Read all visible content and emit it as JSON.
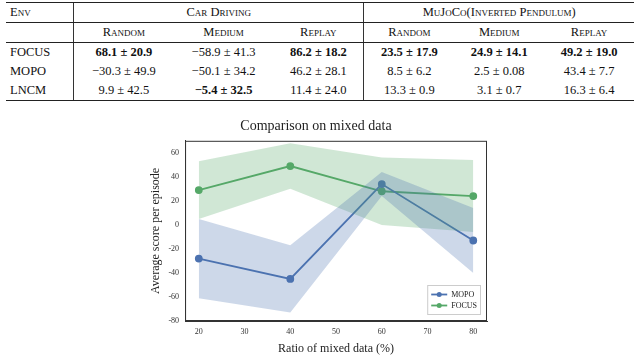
{
  "table": {
    "corner": "Env",
    "groups": [
      {
        "text": "Car Driving",
        "columns": [
          "Random",
          "Medium",
          "Replay"
        ]
      },
      {
        "text": "MuJoCo(Inverted Pendulum)",
        "columns": [
          "Random",
          "Medium",
          "Replay"
        ]
      }
    ],
    "rows": [
      {
        "name": "FOCUS",
        "cells": [
          {
            "text": "68.1 ± 20.9",
            "bold": true
          },
          {
            "text": "−58.9 ± 41.3",
            "bold": false
          },
          {
            "text": "86.2 ± 18.2",
            "bold": true
          },
          {
            "text": "23.5 ± 17.9",
            "bold": true
          },
          {
            "text": "24.9 ± 14.1",
            "bold": true
          },
          {
            "text": "49.2 ± 19.0",
            "bold": true
          }
        ]
      },
      {
        "name": "MOPO",
        "cells": [
          {
            "text": "−30.3 ± 49.9",
            "bold": false
          },
          {
            "text": "−50.1 ± 34.2",
            "bold": false
          },
          {
            "text": "46.2 ± 28.1",
            "bold": false
          },
          {
            "text": "8.5 ± 6.2",
            "bold": false
          },
          {
            "text": "2.5 ± 0.08",
            "bold": false
          },
          {
            "text": "43.4 ± 7.7",
            "bold": false
          }
        ]
      },
      {
        "name": "LNCM",
        "cells": [
          {
            "text": "9.9 ± 42.5",
            "bold": false
          },
          {
            "text": "−5.4 ± 32.5",
            "bold": true
          },
          {
            "text": "11.4 ± 24.0",
            "bold": false
          },
          {
            "text": "13.3 ± 0.9",
            "bold": false
          },
          {
            "text": "3.1 ± 0.7",
            "bold": false
          },
          {
            "text": "16.3 ± 6.4",
            "bold": false
          }
        ]
      }
    ]
  },
  "chart_data": {
    "type": "line",
    "title": "Comparison on mixed data",
    "x_label": "Ratio of mixed data (%)",
    "y_label": "Average score per episode",
    "x": [
      20,
      40,
      60,
      80
    ],
    "xlim": [
      17,
      83
    ],
    "xticks": [
      20,
      30,
      40,
      50,
      60,
      70,
      80
    ],
    "ylim": [
      -80,
      70
    ],
    "yticks": [
      -80,
      -60,
      -40,
      -20,
      0,
      20,
      40,
      60
    ],
    "grid": false,
    "legend": "lower right",
    "series": [
      {
        "name": "MOPO",
        "color": "#4c72b0",
        "marker": "circle",
        "values": [
          -28,
          -45,
          34,
          -13
        ],
        "error": [
          33,
          28,
          10,
          27
        ]
      },
      {
        "name": "FOCUS",
        "color": "#55a868",
        "marker": "circle",
        "values": [
          29,
          49,
          28,
          24
        ],
        "error": [
          24,
          19,
          28,
          30
        ]
      }
    ]
  }
}
